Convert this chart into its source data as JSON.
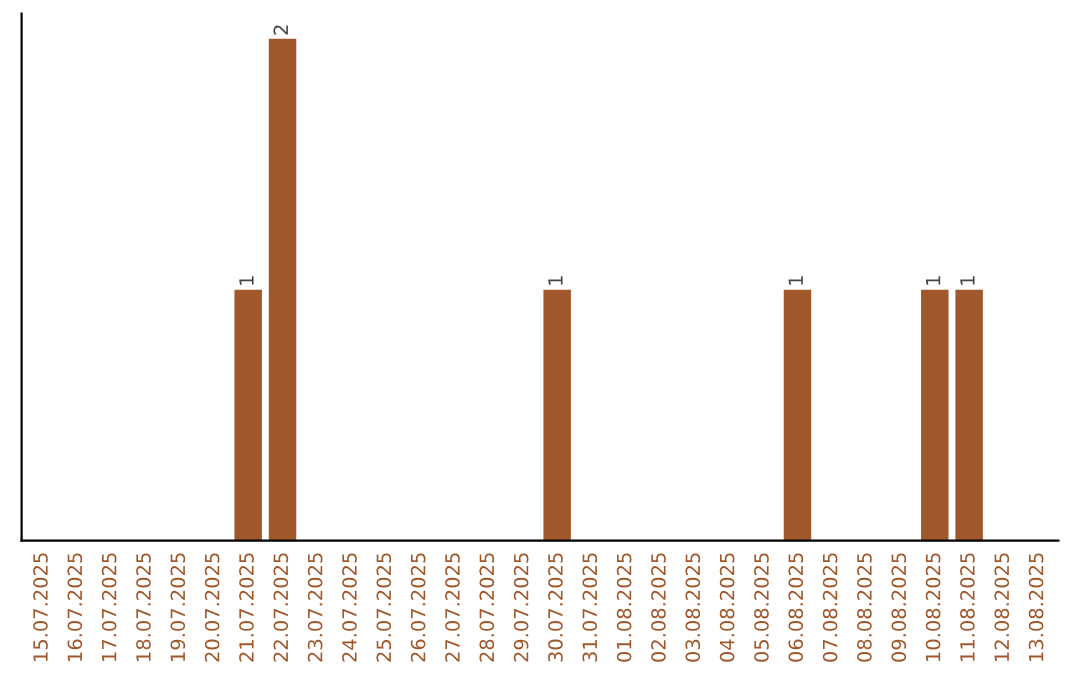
{
  "chart_data": {
    "type": "bar",
    "categories": [
      "15.07.2025",
      "16.07.2025",
      "17.07.2025",
      "18.07.2025",
      "19.07.2025",
      "20.07.2025",
      "21.07.2025",
      "22.07.2025",
      "23.07.2025",
      "24.07.2025",
      "25.07.2025",
      "26.07.2025",
      "27.07.2025",
      "28.07.2025",
      "29.07.2025",
      "30.07.2025",
      "31.07.2025",
      "01.08.2025",
      "02.08.2025",
      "03.08.2025",
      "04.08.2025",
      "05.08.2025",
      "06.08.2025",
      "07.08.2025",
      "08.08.2025",
      "09.08.2025",
      "10.08.2025",
      "11.08.2025",
      "12.08.2025",
      "13.08.2025"
    ],
    "values": [
      0,
      0,
      0,
      0,
      0,
      0,
      1,
      2,
      0,
      0,
      0,
      0,
      0,
      0,
      0,
      1,
      0,
      0,
      0,
      0,
      0,
      0,
      1,
      0,
      0,
      0,
      1,
      1,
      0,
      0
    ],
    "value_labels": [
      null,
      null,
      null,
      null,
      null,
      null,
      "1",
      "2",
      null,
      null,
      null,
      null,
      null,
      null,
      null,
      "1",
      null,
      null,
      null,
      null,
      null,
      null,
      "1",
      null,
      null,
      null,
      "1",
      "1",
      null,
      null
    ],
    "color": "#a0572a",
    "tick_labels": "x",
    "grid": false,
    "legend": false
  }
}
